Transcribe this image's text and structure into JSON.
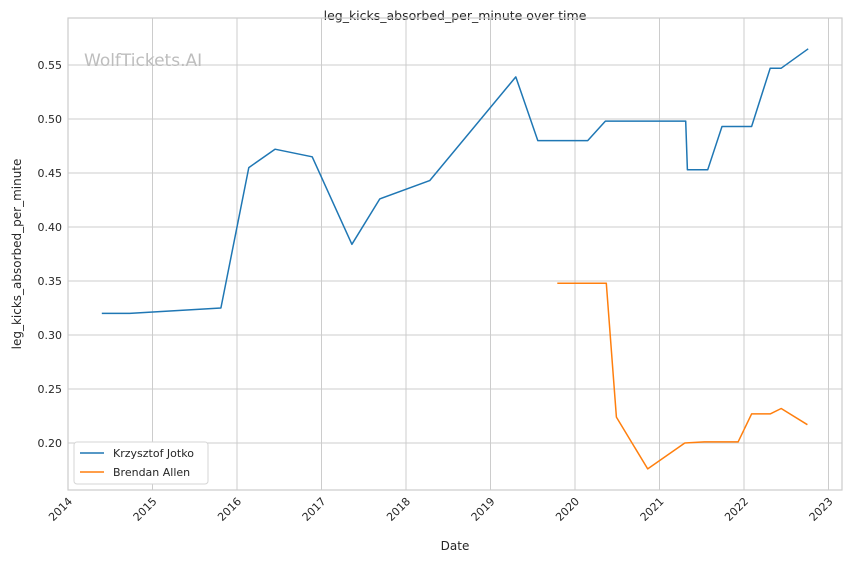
{
  "chart_data": {
    "type": "line",
    "title": "leg_kicks_absorbed_per_minute over time",
    "xlabel": "Date",
    "ylabel": "leg_kicks_absorbed_per_minute",
    "xlim": [
      2014.0,
      2022.9
    ],
    "ylim": [
      0.1565,
      0.5935
    ],
    "x_ticks": [
      2014,
      2015,
      2016,
      2017,
      2018,
      2019,
      2020,
      2021,
      2022,
      2023
    ],
    "x_tick_labels": [
      "2014",
      "2015",
      "2016",
      "2017",
      "2018",
      "2019",
      "2020",
      "2021",
      "2022",
      "2023"
    ],
    "y_ticks": [
      0.2,
      0.25,
      0.3,
      0.35,
      0.4,
      0.45,
      0.5,
      0.55
    ],
    "y_tick_labels": [
      "0.20",
      "0.25",
      "0.30",
      "0.35",
      "0.40",
      "0.45",
      "0.50",
      "0.55"
    ],
    "grid": true,
    "legend_position": "bottom-left",
    "watermark": "WolfTickets.AI",
    "series": [
      {
        "name": "Krzysztof Jotko",
        "color": "#1f77b4",
        "x": [
          2014.4,
          2014.73,
          2015.81,
          2016.14,
          2016.45,
          2016.89,
          2017.36,
          2017.69,
          2018.28,
          2019.3,
          2019.56,
          2020.15,
          2020.36,
          2021.31,
          2021.33,
          2021.57,
          2021.74,
          2022.09,
          2022.31,
          2022.44,
          2022.76
        ],
        "y": [
          0.32,
          0.32,
          0.325,
          0.455,
          0.472,
          0.465,
          0.384,
          0.426,
          0.443,
          0.539,
          0.48,
          0.48,
          0.498,
          0.498,
          0.453,
          0.453,
          0.493,
          0.493,
          0.547,
          0.547,
          0.565
        ]
      },
      {
        "name": "Brendan Allen",
        "color": "#ff7f0e",
        "x": [
          2019.79,
          2020.37,
          2020.49,
          2020.86,
          2021.3,
          2021.53,
          2021.93,
          2022.09,
          2022.31,
          2022.44,
          2022.75
        ],
        "y": [
          0.348,
          0.348,
          0.224,
          0.176,
          0.2,
          0.201,
          0.201,
          0.227,
          0.227,
          0.232,
          0.217
        ]
      }
    ]
  }
}
